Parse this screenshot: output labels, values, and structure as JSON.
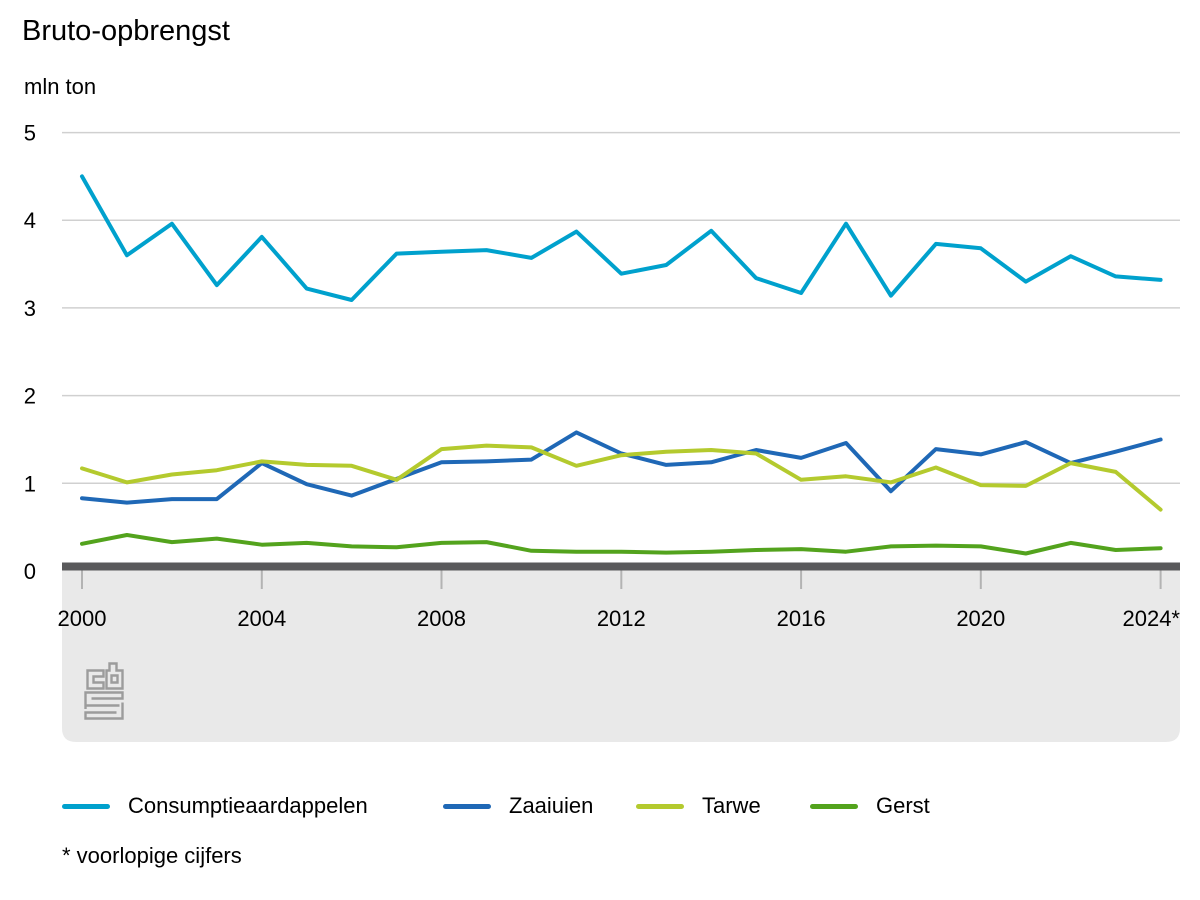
{
  "header": {
    "title": "Bruto-opbrengst",
    "unit_label": "mln ton"
  },
  "footnote": "* voorlopige cijfers",
  "logo_name": "cbs-logo",
  "chart_data": {
    "type": "line",
    "title": "Bruto-opbrengst",
    "ylabel": "mln ton",
    "xlabel": "",
    "ylim": [
      0,
      5
    ],
    "ytick_labels": [
      "0",
      "1",
      "2",
      "3",
      "4",
      "5"
    ],
    "grid": "horizontal-only",
    "legend_position": "bottom",
    "x": [
      2000,
      2001,
      2002,
      2003,
      2004,
      2005,
      2006,
      2007,
      2008,
      2009,
      2010,
      2011,
      2012,
      2013,
      2014,
      2015,
      2016,
      2017,
      2018,
      2019,
      2020,
      2021,
      2022,
      2023,
      2024
    ],
    "xticks": [
      2000,
      2004,
      2008,
      2012,
      2016,
      2020,
      2024
    ],
    "xtick_labels": [
      "2000",
      "2004",
      "2008",
      "2012",
      "2016",
      "2020",
      "2024*"
    ],
    "series": [
      {
        "name": "Consumptieaardappelen",
        "slug": "consumptieaardappelen",
        "color": "#00a1cd",
        "values": [
          4.5,
          3.6,
          3.96,
          3.26,
          3.81,
          3.22,
          3.09,
          3.62,
          3.64,
          3.66,
          3.57,
          3.87,
          3.39,
          3.49,
          3.88,
          3.34,
          3.17,
          3.96,
          3.14,
          3.73,
          3.68,
          3.3,
          3.59,
          3.36,
          3.32
        ]
      },
      {
        "name": "Zaaiuien",
        "slug": "zaaiuien",
        "color": "#1f68b6",
        "values": [
          0.83,
          0.78,
          0.82,
          0.82,
          1.23,
          0.99,
          0.86,
          1.05,
          1.24,
          1.25,
          1.27,
          1.58,
          1.34,
          1.21,
          1.24,
          1.38,
          1.29,
          1.46,
          0.91,
          1.39,
          1.33,
          1.47,
          1.23,
          1.36,
          1.5
        ]
      },
      {
        "name": "Tarwe",
        "slug": "tarwe",
        "color": "#b4ca2e",
        "values": [
          1.17,
          1.01,
          1.1,
          1.15,
          1.25,
          1.21,
          1.2,
          1.04,
          1.39,
          1.43,
          1.41,
          1.2,
          1.32,
          1.36,
          1.38,
          1.34,
          1.04,
          1.08,
          1.01,
          1.18,
          0.98,
          0.97,
          1.23,
          1.13,
          0.7
        ]
      },
      {
        "name": "Gerst",
        "slug": "gerst",
        "color": "#53a31d",
        "values": [
          0.31,
          0.41,
          0.33,
          0.37,
          0.3,
          0.32,
          0.28,
          0.27,
          0.32,
          0.33,
          0.23,
          0.22,
          0.22,
          0.21,
          0.22,
          0.24,
          0.25,
          0.22,
          0.28,
          0.29,
          0.28,
          0.2,
          0.32,
          0.24,
          0.26
        ]
      }
    ],
    "colors": {
      "axis_bar": "#59595b",
      "band_background": "#e9e9e9",
      "gridline": "#d0d0d0",
      "tick": "#b3b3b3",
      "label_text": "#000000",
      "logo_gray": "#9c9c9c"
    }
  }
}
